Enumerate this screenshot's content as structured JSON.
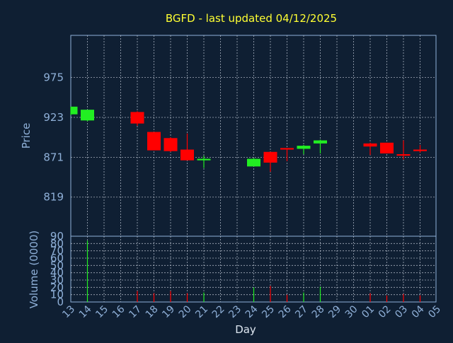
{
  "title": "BGFD - last updated 04/12/2025",
  "colors": {
    "background": "#0f1f33",
    "title": "#ffff33",
    "axis": "#8fb0d8",
    "up": "#22ee22",
    "down": "#ff0000",
    "grid": "#c8d0dc"
  },
  "chart_data": {
    "type": "candlestick",
    "title": "BGFD - last updated 04/12/2025",
    "xlabel": "Day",
    "ylabel": "Price",
    "volume_ylabel": "Volume (0000)",
    "x_ticks": [
      "13",
      "14",
      "15",
      "16",
      "17",
      "18",
      "19",
      "20",
      "21",
      "22",
      "23",
      "24",
      "25",
      "26",
      "27",
      "28",
      "29",
      "30",
      "01",
      "02",
      "03",
      "04",
      "05"
    ],
    "price_ticks": [
      819,
      871,
      923,
      975
    ],
    "price_range": [
      768,
      1030
    ],
    "volume_ticks": [
      0,
      10,
      20,
      30,
      40,
      50,
      60,
      70,
      80,
      90
    ],
    "volume_range": [
      0,
      90
    ],
    "grid": true,
    "candles": [
      {
        "x": "13",
        "open": 927,
        "high": 937,
        "low": 926,
        "close": 937,
        "volume": 0
      },
      {
        "x": "14",
        "open": 919,
        "high": 933,
        "low": 918,
        "close": 933,
        "volume": 84
      },
      {
        "x": "17",
        "open": 930,
        "high": 931,
        "low": 912,
        "close": 915,
        "volume": 15
      },
      {
        "x": "18",
        "open": 904,
        "high": 904,
        "low": 880,
        "close": 880,
        "volume": 12
      },
      {
        "x": "19",
        "open": 896,
        "high": 897,
        "low": 878,
        "close": 879,
        "volume": 15
      },
      {
        "x": "20",
        "open": 881,
        "high": 902,
        "low": 867,
        "close": 867,
        "volume": 12
      },
      {
        "x": "21",
        "open": 867,
        "high": 873,
        "low": 857,
        "close": 869,
        "volume": 13
      },
      {
        "x": "24",
        "open": 859,
        "high": 870,
        "low": 859,
        "close": 869,
        "volume": 20
      },
      {
        "x": "25",
        "open": 878,
        "high": 878,
        "low": 852,
        "close": 864,
        "volume": 22
      },
      {
        "x": "26",
        "open": 883,
        "high": 883,
        "low": 866,
        "close": 881,
        "volume": 10
      },
      {
        "x": "27",
        "open": 882,
        "high": 887,
        "low": 875,
        "close": 886,
        "volume": 13
      },
      {
        "x": "28",
        "open": 889,
        "high": 894,
        "low": 876,
        "close": 893,
        "volume": 21
      },
      {
        "x": "01",
        "open": 889,
        "high": 890,
        "low": 874,
        "close": 885,
        "volume": 12
      },
      {
        "x": "02",
        "open": 890,
        "high": 890,
        "low": 876,
        "close": 876,
        "volume": 9
      },
      {
        "x": "03",
        "open": 875,
        "high": 893,
        "low": 868,
        "close": 873,
        "volume": 11
      },
      {
        "x": "04",
        "open": 881,
        "high": 887,
        "low": 877,
        "close": 879,
        "volume": 9
      }
    ]
  }
}
